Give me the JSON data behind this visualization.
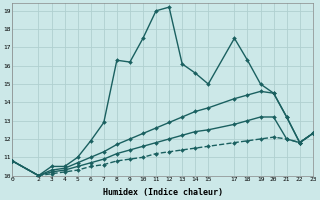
{
  "xlabel": "Humidex (Indice chaleur)",
  "ylabel": "",
  "bg_color": "#cce8e8",
  "grid_color": "#b0d0d0",
  "line_color": "#1a6060",
  "xlim": [
    0,
    23
  ],
  "ylim": [
    10,
    19.4
  ],
  "yticks": [
    10,
    11,
    12,
    13,
    14,
    15,
    16,
    17,
    18,
    19
  ],
  "xticks": [
    0,
    2,
    3,
    4,
    5,
    6,
    7,
    8,
    9,
    10,
    11,
    12,
    13,
    14,
    15,
    17,
    18,
    19,
    20,
    21,
    22,
    23
  ],
  "lines": [
    {
      "x": [
        0,
        2,
        3,
        4,
        5,
        6,
        7,
        8,
        9,
        10,
        11,
        12,
        13,
        14,
        15,
        17,
        18,
        19,
        20,
        21,
        22,
        23
      ],
      "y": [
        10.8,
        10.0,
        10.5,
        10.5,
        11.0,
        11.9,
        12.9,
        16.3,
        16.2,
        17.5,
        19.0,
        19.2,
        16.1,
        15.6,
        15.0,
        17.5,
        16.3,
        15.0,
        14.5,
        13.2,
        11.8,
        12.3
      ],
      "marker": "D",
      "ms": 2.0,
      "lw": 1.0,
      "ls": "-"
    },
    {
      "x": [
        0,
        2,
        3,
        4,
        5,
        6,
        7,
        8,
        9,
        10,
        11,
        12,
        13,
        14,
        15,
        17,
        18,
        19,
        20,
        21,
        22,
        23
      ],
      "y": [
        10.8,
        10.0,
        10.3,
        10.4,
        10.7,
        11.0,
        11.3,
        11.7,
        12.0,
        12.3,
        12.6,
        12.9,
        13.2,
        13.5,
        13.7,
        14.2,
        14.4,
        14.6,
        14.5,
        13.2,
        11.8,
        12.3
      ],
      "marker": "D",
      "ms": 2.0,
      "lw": 1.0,
      "ls": "-"
    },
    {
      "x": [
        0,
        2,
        3,
        4,
        5,
        6,
        7,
        8,
        9,
        10,
        11,
        12,
        13,
        14,
        15,
        17,
        18,
        19,
        20,
        21,
        22,
        23
      ],
      "y": [
        10.8,
        10.0,
        10.2,
        10.3,
        10.5,
        10.7,
        10.9,
        11.2,
        11.4,
        11.6,
        11.8,
        12.0,
        12.2,
        12.4,
        12.5,
        12.8,
        13.0,
        13.2,
        13.2,
        12.0,
        11.8,
        12.3
      ],
      "marker": "D",
      "ms": 2.0,
      "lw": 1.0,
      "ls": "-"
    },
    {
      "x": [
        0,
        2,
        3,
        4,
        5,
        6,
        7,
        8,
        9,
        10,
        11,
        12,
        13,
        14,
        15,
        17,
        18,
        19,
        20,
        21,
        22,
        23
      ],
      "y": [
        10.8,
        10.0,
        10.1,
        10.2,
        10.3,
        10.5,
        10.6,
        10.8,
        10.9,
        11.0,
        11.2,
        11.3,
        11.4,
        11.5,
        11.6,
        11.8,
        11.9,
        12.0,
        12.1,
        12.0,
        11.8,
        12.3
      ],
      "marker": "D",
      "ms": 2.0,
      "lw": 1.0,
      "ls": "--"
    }
  ]
}
